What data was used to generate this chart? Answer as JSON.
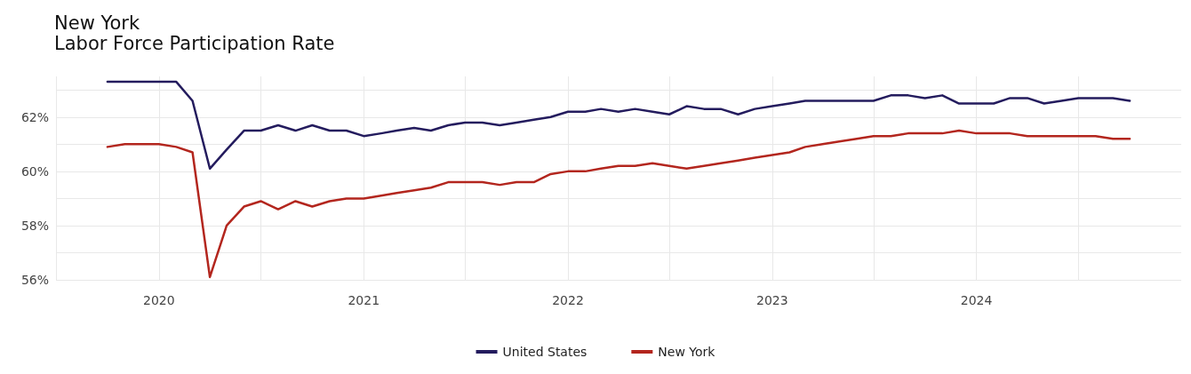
{
  "chart_data": {
    "type": "line",
    "title": "New York",
    "subtitle": "Labor Force Participation Rate",
    "x": [
      "2019-10",
      "2019-11",
      "2019-12",
      "2020-01",
      "2020-02",
      "2020-03",
      "2020-04",
      "2020-05",
      "2020-06",
      "2020-07",
      "2020-08",
      "2020-09",
      "2020-10",
      "2020-11",
      "2020-12",
      "2021-01",
      "2021-02",
      "2021-03",
      "2021-04",
      "2021-05",
      "2021-06",
      "2021-07",
      "2021-08",
      "2021-09",
      "2021-10",
      "2021-11",
      "2021-12",
      "2022-01",
      "2022-02",
      "2022-03",
      "2022-04",
      "2022-05",
      "2022-06",
      "2022-07",
      "2022-08",
      "2022-09",
      "2022-10",
      "2022-11",
      "2022-12",
      "2023-01",
      "2023-02",
      "2023-03",
      "2023-04",
      "2023-05",
      "2023-06",
      "2023-07",
      "2023-08",
      "2023-09",
      "2023-10",
      "2023-11",
      "2023-12",
      "2024-01",
      "2024-02",
      "2024-03",
      "2024-04",
      "2024-05",
      "2024-06",
      "2024-07",
      "2024-08",
      "2024-09",
      "2024-10"
    ],
    "series": [
      {
        "name": "United States",
        "color": "#241c5e",
        "values": [
          63.3,
          63.3,
          63.3,
          63.3,
          63.3,
          62.6,
          60.1,
          60.8,
          61.5,
          61.5,
          61.7,
          61.5,
          61.7,
          61.5,
          61.5,
          61.3,
          61.4,
          61.5,
          61.6,
          61.5,
          61.7,
          61.8,
          61.8,
          61.7,
          61.8,
          61.9,
          62.0,
          62.2,
          62.2,
          62.3,
          62.2,
          62.3,
          62.2,
          62.1,
          62.4,
          62.3,
          62.3,
          62.1,
          62.3,
          62.4,
          62.5,
          62.6,
          62.6,
          62.6,
          62.6,
          62.6,
          62.8,
          62.8,
          62.7,
          62.8,
          62.5,
          62.5,
          62.5,
          62.7,
          62.7,
          62.5,
          62.6,
          62.7,
          62.7,
          62.7,
          62.6
        ]
      },
      {
        "name": "New York",
        "color": "#b3261e",
        "values": [
          60.9,
          61.0,
          61.0,
          61.0,
          60.9,
          60.7,
          56.1,
          58.0,
          58.7,
          58.9,
          58.6,
          58.9,
          58.7,
          58.9,
          59.0,
          59.0,
          59.1,
          59.2,
          59.3,
          59.4,
          59.6,
          59.6,
          59.6,
          59.5,
          59.6,
          59.6,
          59.9,
          60.0,
          60.0,
          60.1,
          60.2,
          60.2,
          60.3,
          60.2,
          60.1,
          60.2,
          60.3,
          60.4,
          60.5,
          60.6,
          60.7,
          60.9,
          61.0,
          61.1,
          61.2,
          61.3,
          61.3,
          61.4,
          61.4,
          61.4,
          61.5,
          61.4,
          61.4,
          61.4,
          61.3,
          61.3,
          61.3,
          61.3,
          61.3,
          61.2,
          61.2
        ]
      }
    ],
    "xlim": [
      "2019-07",
      "2025-01"
    ],
    "xticks": [
      {
        "value": "2019-07",
        "label": null
      },
      {
        "value": "2020-01",
        "label": "2020"
      },
      {
        "value": "2020-07",
        "label": null
      },
      {
        "value": "2021-01",
        "label": "2021"
      },
      {
        "value": "2021-07",
        "label": null
      },
      {
        "value": "2022-01",
        "label": "2022"
      },
      {
        "value": "2022-07",
        "label": null
      },
      {
        "value": "2023-01",
        "label": "2023"
      },
      {
        "value": "2023-07",
        "label": null
      },
      {
        "value": "2024-01",
        "label": "2024"
      },
      {
        "value": "2024-07",
        "label": null
      }
    ],
    "ylim": [
      56,
      63.5
    ],
    "yticks": [
      {
        "value": 56,
        "label": "56%"
      },
      {
        "value": 57,
        "label": null
      },
      {
        "value": 58,
        "label": "58%"
      },
      {
        "value": 59,
        "label": null
      },
      {
        "value": 60,
        "label": "60%"
      },
      {
        "value": 61,
        "label": null
      },
      {
        "value": 62,
        "label": "62%"
      },
      {
        "value": 63,
        "label": null
      }
    ],
    "grid": true,
    "legend": "bottom",
    "marker": "none",
    "line_style": "solid"
  }
}
